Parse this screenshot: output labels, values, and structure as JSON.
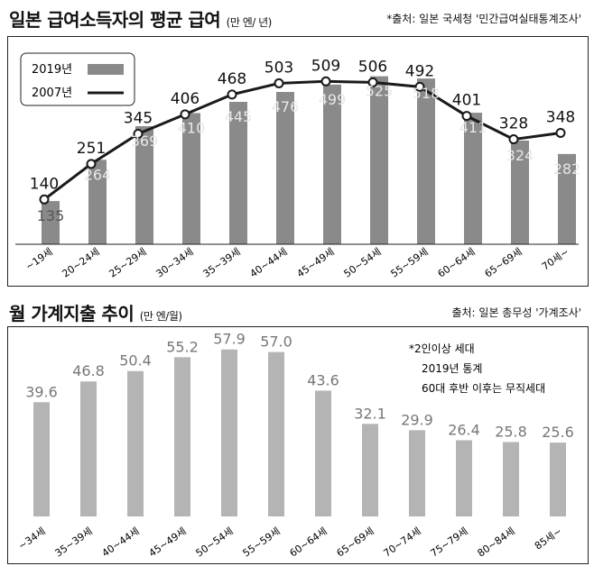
{
  "chart_data": [
    {
      "type": "bar",
      "title": "일본 급여소득자의 평균 급여",
      "unit": "(만 엔/ 년)",
      "source": "*출처: 일본 국세청 '민간급여실태통계조사'",
      "categories": [
        "~19세",
        "20~24세",
        "25~29세",
        "30~34세",
        "35~39세",
        "40~44세",
        "45~49세",
        "50~54세",
        "55~59세",
        "60~64세",
        "65~69세",
        "70세~"
      ],
      "series": [
        {
          "name": "2019년",
          "type": "bar",
          "values": [
            135,
            264,
            369,
            410,
            445,
            476,
            499,
            525,
            518,
            411,
            324,
            282
          ]
        },
        {
          "name": "2007년",
          "type": "line",
          "values": [
            140,
            251,
            345,
            406,
            468,
            503,
            509,
            506,
            492,
            401,
            328,
            348
          ]
        }
      ],
      "ylim": [
        0,
        560
      ],
      "legend": "top-left",
      "colors": {
        "bar": "#8a8a8a",
        "line": "#1a1a1a",
        "bar_label": "#e8e8e8"
      }
    },
    {
      "type": "bar",
      "title": "월 가계지출 추이",
      "unit": "(만 엔/월)",
      "source": "출처: 일본 총무성 '가계조사'",
      "categories": [
        "~34세",
        "35~39세",
        "40~44세",
        "45~49세",
        "50~54세",
        "55~59세",
        "60~64세",
        "65~69세",
        "70~74세",
        "75~79세",
        "80~84세",
        "85세~"
      ],
      "series": [
        {
          "values": [
            39.6,
            46.8,
            50.4,
            55.2,
            57.9,
            57.0,
            43.6,
            32.1,
            29.9,
            26.4,
            25.8,
            25.6
          ]
        }
      ],
      "ylim": [
        0,
        62
      ],
      "notes": [
        "*2인이상 세대",
        "2019년 통계",
        "60대 후반 이후는 무직세대"
      ],
      "colors": {
        "bar": "#b4b4b4",
        "label": "#777777"
      }
    }
  ]
}
